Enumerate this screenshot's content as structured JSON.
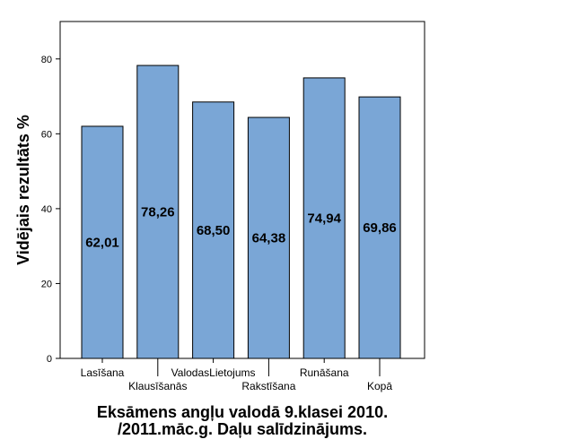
{
  "chart_data": {
    "type": "bar",
    "categories": [
      "Lasīšana",
      "Klausīšanās",
      "ValodasLietojums",
      "Rakstīšana",
      "Runāšana",
      "Kopā"
    ],
    "values": [
      62.01,
      78.26,
      68.5,
      64.38,
      74.94,
      69.86
    ],
    "data_labels": [
      "62,01",
      "78,26",
      "68,50",
      "64,38",
      "74,94",
      "69,86"
    ],
    "title_lines": [
      "Eksāmens angļu valodā 9.klasei 2010.",
      "/2011.māc.g. Daļu salīdzinājums."
    ],
    "xlabel": "",
    "ylabel": "Vidējais rezultāts %",
    "ylim": [
      0,
      90
    ],
    "yticks": [
      0,
      20,
      40,
      60,
      80
    ],
    "grid": false,
    "legend": "none",
    "bar_color": "#7aa6d6",
    "bar_edge_color": "#000000"
  }
}
